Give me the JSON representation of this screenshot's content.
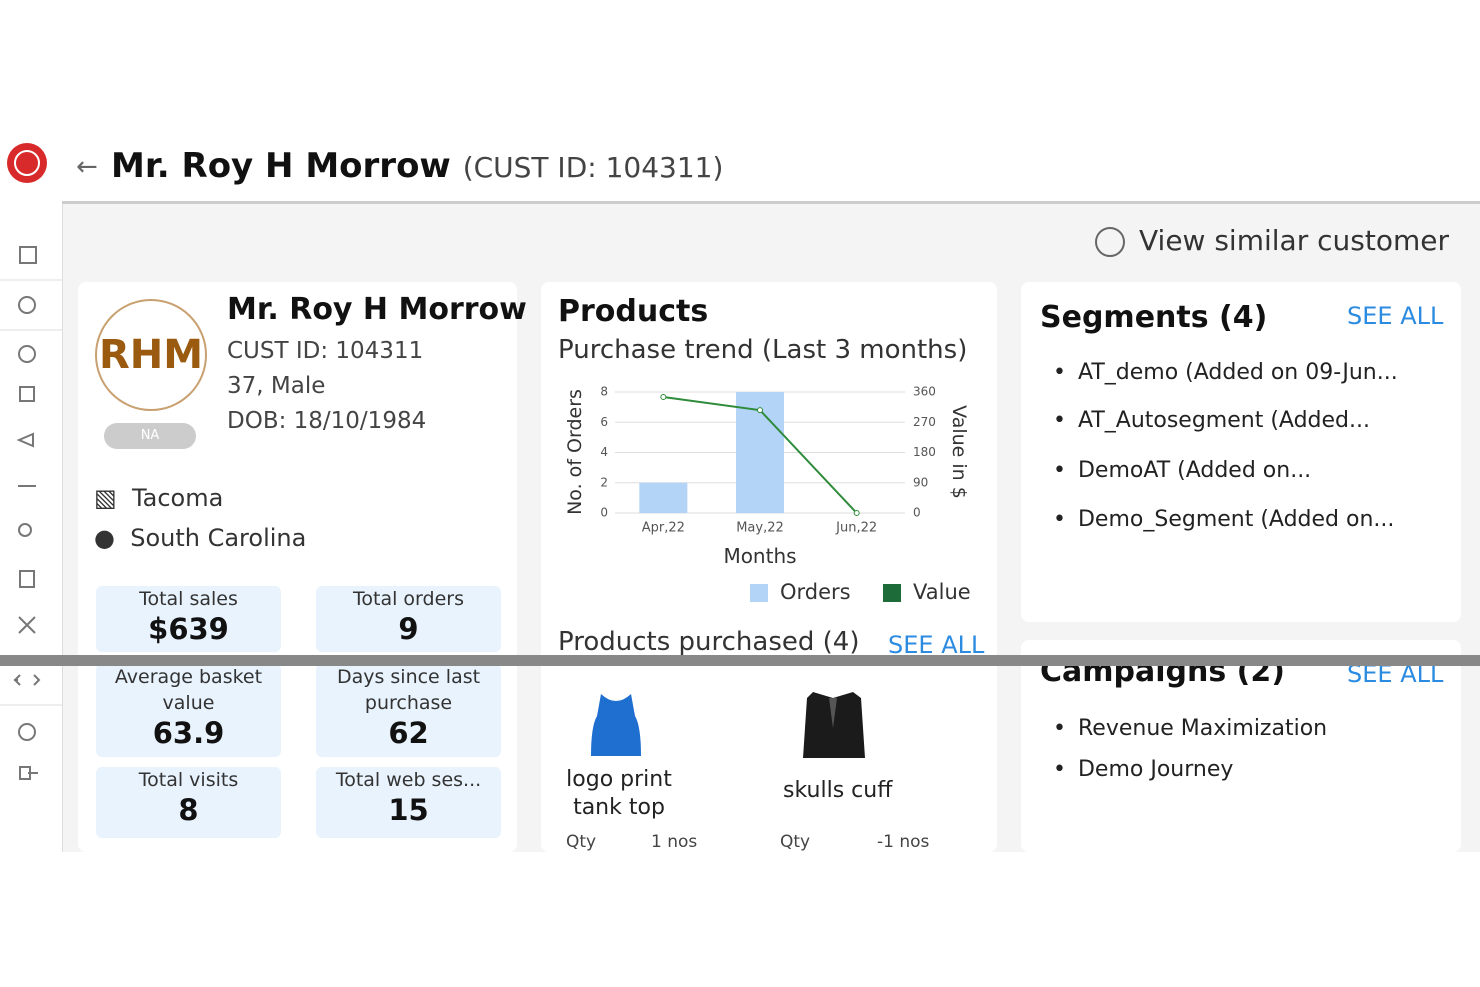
{
  "header": {
    "name": "Mr. Roy H Morrow",
    "cust_id": "(CUST ID: 104311)",
    "action": "View similar customer"
  },
  "profile": {
    "initials": "RHM",
    "badge": "NA",
    "name": "Mr. Roy H Morrow",
    "cust_id": "CUST ID: 104311",
    "age_gender": "37, Male",
    "dob": "DOB: 18/10/1984",
    "city": "Tacoma",
    "state": "South Carolina"
  },
  "stats": [
    {
      "label": "Total sales",
      "value": "$639"
    },
    {
      "label": "Total orders",
      "value": "9"
    },
    {
      "label": "Average basket value",
      "value": "63.9"
    },
    {
      "label": "Days since last purchase",
      "value": "62"
    },
    {
      "label": "Total visits",
      "value": "8"
    },
    {
      "label": "Total web ses...",
      "value": "15"
    }
  ],
  "products": {
    "title": "Products",
    "purchased_title": "Products purchased (4)",
    "see_all": "SEE ALL",
    "items": [
      {
        "name": "logo print tank top",
        "qty_label": "Qty",
        "qty": "1 nos"
      },
      {
        "name": "skulls cuff",
        "qty_label": "Qty",
        "qty": "-1 nos"
      }
    ]
  },
  "chart_data": {
    "type": "bar",
    "title": "Purchase trend (Last 3 months)",
    "x_label": "Months",
    "y_label": "No. of Orders",
    "y2_label": "Value in $",
    "categories": [
      "Apr,22",
      "May,22",
      "Jun,22"
    ],
    "series": [
      {
        "name": "Orders",
        "color": "#b3d4f7",
        "values": [
          2,
          8,
          0
        ]
      },
      {
        "name": "Value",
        "color": "#1e6b3a",
        "line_color": "#2e8b3a",
        "values": [
          345,
          306,
          0
        ],
        "axis": "y2"
      }
    ],
    "ylim": [
      0,
      8
    ],
    "yticks": [
      0,
      2,
      4,
      6,
      8
    ],
    "y2lim": [
      0,
      360
    ],
    "y2ticks": [
      0,
      90,
      180,
      270,
      360
    ],
    "grid": true
  },
  "segments": {
    "title": "Segments (4)",
    "see_all": "SEE ALL",
    "items": [
      "AT_demo (Added on 09-Jun...",
      "AT_Autosegment (Added...",
      "DemoAT (Added on...",
      "Demo_Segment (Added on..."
    ]
  },
  "campaigns": {
    "title": "Campaigns (2)",
    "see_all": "SEE ALL",
    "items": [
      "Revenue Maximization",
      "Demo Journey"
    ]
  }
}
